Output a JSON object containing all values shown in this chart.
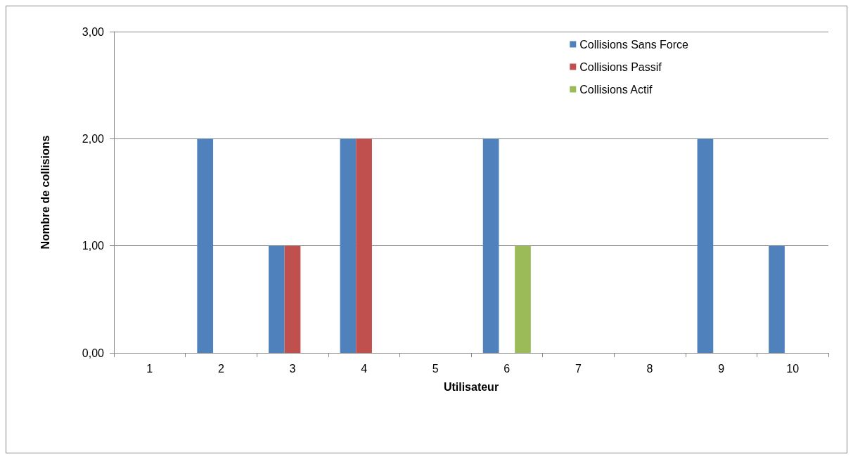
{
  "chart_data": {
    "type": "bar",
    "xlabel": "Utilisateur",
    "ylabel": "Nombre de collisions",
    "categories": [
      "1",
      "2",
      "3",
      "4",
      "5",
      "6",
      "7",
      "8",
      "9",
      "10"
    ],
    "series": [
      {
        "name": "Collisions Sans Force",
        "color": "#4f81bd",
        "values": [
          0,
          2,
          1,
          2,
          0,
          2,
          0,
          0,
          2,
          1
        ]
      },
      {
        "name": "Collisions Passif",
        "color": "#c0504d",
        "values": [
          0,
          0,
          1,
          2,
          0,
          0,
          0,
          0,
          0,
          0
        ]
      },
      {
        "name": "Collisions Actif",
        "color": "#9bbb59",
        "values": [
          0,
          0,
          0,
          0,
          0,
          1,
          0,
          0,
          0,
          0
        ]
      }
    ],
    "ylim": [
      0,
      3
    ],
    "yticks": [
      {
        "value": 0,
        "label": "0,00"
      },
      {
        "value": 1,
        "label": "1,00"
      },
      {
        "value": 2,
        "label": "2,00"
      },
      {
        "value": 3,
        "label": "3,00"
      }
    ],
    "grid": "y",
    "legend": "top right"
  }
}
